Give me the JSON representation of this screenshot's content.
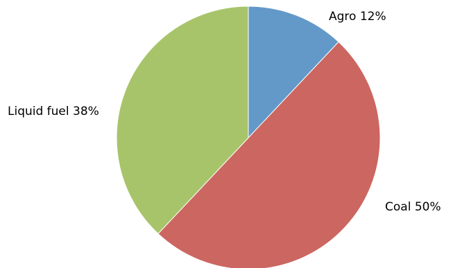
{
  "chart_data": {
    "type": "pie",
    "slices": [
      {
        "label": "Agro",
        "value": 12,
        "color": "#6399c9"
      },
      {
        "label": "Coal",
        "value": 50,
        "color": "#cc6660"
      },
      {
        "label": "Liquid fuel",
        "value": 38,
        "color": "#a8c46a"
      }
    ],
    "labels": [
      "Agro 12%",
      "Coal 50%",
      "Liquid fuel 38%"
    ],
    "start_angle": "12 o'clock",
    "direction": "clockwise",
    "legend": "none"
  }
}
